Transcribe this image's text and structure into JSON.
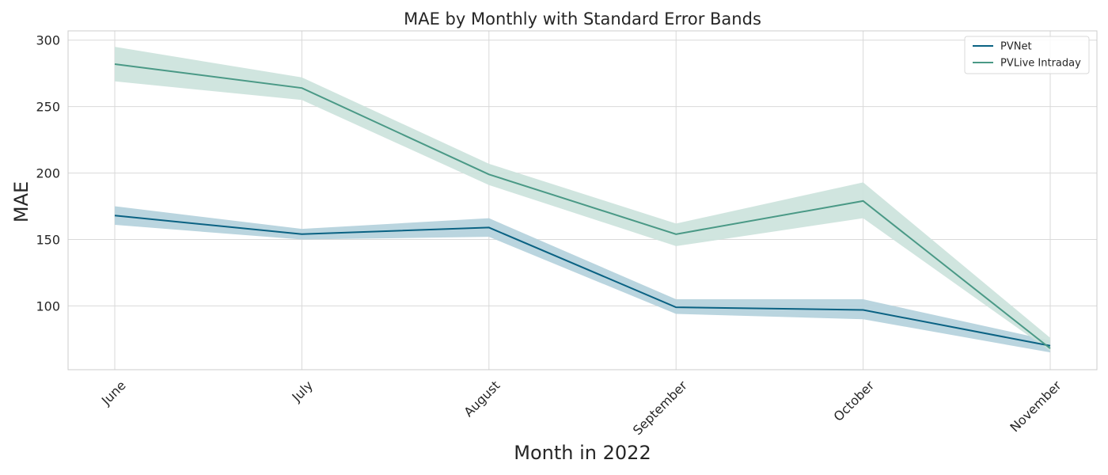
{
  "chart_data": {
    "type": "line",
    "title": "MAE by Monthly with Standard Error Bands",
    "xlabel": "Month in 2022",
    "ylabel": "MAE",
    "categories": [
      "June",
      "July",
      "August",
      "September",
      "October",
      "November"
    ],
    "ylim": [
      52,
      307
    ],
    "yticks": [
      100,
      150,
      200,
      250,
      300
    ],
    "grid": true,
    "legend_position": "top-right",
    "series": [
      {
        "name": "PVNet",
        "color": "#0a6283",
        "band_color": "#b3d0dc",
        "values": [
          168,
          154,
          159,
          99,
          97,
          70
        ],
        "lower": [
          161,
          150,
          152,
          94,
          90,
          65
        ],
        "upper": [
          175,
          158,
          166,
          105,
          105,
          74
        ]
      },
      {
        "name": "PVLive Intraday",
        "color": "#4a9986",
        "band_color": "#cbe2dc",
        "values": [
          282,
          264,
          199,
          154,
          179,
          68
        ],
        "lower": [
          269,
          255,
          191,
          145,
          166,
          66
        ],
        "upper": [
          295,
          272,
          207,
          162,
          193,
          76
        ]
      }
    ]
  }
}
